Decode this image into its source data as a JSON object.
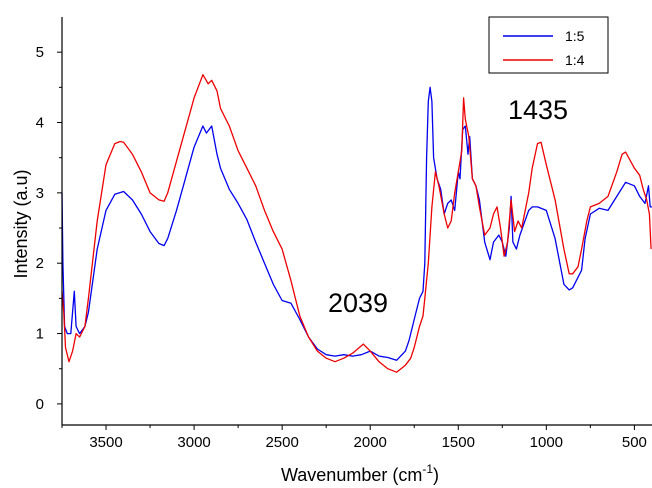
{
  "chart_data": {
    "type": "line",
    "title": "",
    "xlabel": "Wavenumber (cm",
    "xlabel_sup": "-1",
    "xlabel_close": ")",
    "ylabel": "Intensity (a.u)",
    "xlim": [
      3750,
      400
    ],
    "ylim": [
      -0.3,
      5.5
    ],
    "x_reversed": true,
    "grid": false,
    "legend_position": "top-right",
    "xticks": [
      3500,
      3000,
      2500,
      2000,
      1500,
      1000,
      500
    ],
    "yticks": [
      0,
      1,
      2,
      3,
      4,
      5
    ],
    "annotations": [
      {
        "text": "2039",
        "x": 2039,
        "y": 1.2
      },
      {
        "text": "1435",
        "x": 1435,
        "y": 3.85
      }
    ],
    "series": [
      {
        "name": "1:5",
        "color": "#0000ee",
        "points": [
          [
            3750,
            3.0
          ],
          [
            3745,
            2.0
          ],
          [
            3735,
            1.1
          ],
          [
            3720,
            1.0
          ],
          [
            3700,
            1.0
          ],
          [
            3680,
            1.6
          ],
          [
            3670,
            1.1
          ],
          [
            3650,
            1.0
          ],
          [
            3620,
            1.1
          ],
          [
            3600,
            1.3
          ],
          [
            3550,
            2.2
          ],
          [
            3500,
            2.75
          ],
          [
            3450,
            2.98
          ],
          [
            3400,
            3.02
          ],
          [
            3350,
            2.9
          ],
          [
            3300,
            2.7
          ],
          [
            3250,
            2.45
          ],
          [
            3200,
            2.28
          ],
          [
            3170,
            2.25
          ],
          [
            3150,
            2.35
          ],
          [
            3100,
            2.75
          ],
          [
            3050,
            3.2
          ],
          [
            3000,
            3.65
          ],
          [
            2950,
            3.95
          ],
          [
            2930,
            3.85
          ],
          [
            2900,
            3.95
          ],
          [
            2870,
            3.55
          ],
          [
            2850,
            3.35
          ],
          [
            2800,
            3.05
          ],
          [
            2750,
            2.85
          ],
          [
            2700,
            2.62
          ],
          [
            2650,
            2.3
          ],
          [
            2600,
            2.0
          ],
          [
            2550,
            1.7
          ],
          [
            2500,
            1.47
          ],
          [
            2450,
            1.43
          ],
          [
            2400,
            1.2
          ],
          [
            2350,
            0.95
          ],
          [
            2300,
            0.78
          ],
          [
            2250,
            0.7
          ],
          [
            2200,
            0.68
          ],
          [
            2150,
            0.7
          ],
          [
            2100,
            0.68
          ],
          [
            2050,
            0.7
          ],
          [
            2000,
            0.75
          ],
          [
            1950,
            0.68
          ],
          [
            1900,
            0.66
          ],
          [
            1850,
            0.62
          ],
          [
            1800,
            0.75
          ],
          [
            1780,
            0.9
          ],
          [
            1750,
            1.2
          ],
          [
            1720,
            1.5
          ],
          [
            1700,
            1.6
          ],
          [
            1690,
            2.0
          ],
          [
            1680,
            3.5
          ],
          [
            1670,
            4.3
          ],
          [
            1660,
            4.5
          ],
          [
            1650,
            4.3
          ],
          [
            1640,
            3.5
          ],
          [
            1620,
            3.2
          ],
          [
            1600,
            3.05
          ],
          [
            1580,
            2.7
          ],
          [
            1560,
            2.85
          ],
          [
            1540,
            2.9
          ],
          [
            1520,
            2.75
          ],
          [
            1500,
            3.3
          ],
          [
            1490,
            3.2
          ],
          [
            1475,
            3.9
          ],
          [
            1460,
            3.95
          ],
          [
            1445,
            3.55
          ],
          [
            1435,
            3.8
          ],
          [
            1420,
            3.2
          ],
          [
            1400,
            3.1
          ],
          [
            1380,
            2.9
          ],
          [
            1350,
            2.3
          ],
          [
            1320,
            2.05
          ],
          [
            1300,
            2.3
          ],
          [
            1270,
            2.4
          ],
          [
            1250,
            2.3
          ],
          [
            1230,
            2.1
          ],
          [
            1210,
            2.5
          ],
          [
            1200,
            2.95
          ],
          [
            1190,
            2.3
          ],
          [
            1170,
            2.2
          ],
          [
            1150,
            2.4
          ],
          [
            1100,
            2.75
          ],
          [
            1080,
            2.8
          ],
          [
            1050,
            2.8
          ],
          [
            1000,
            2.75
          ],
          [
            950,
            2.35
          ],
          [
            900,
            1.7
          ],
          [
            870,
            1.62
          ],
          [
            850,
            1.65
          ],
          [
            800,
            1.9
          ],
          [
            780,
            2.35
          ],
          [
            750,
            2.7
          ],
          [
            700,
            2.78
          ],
          [
            650,
            2.75
          ],
          [
            600,
            2.95
          ],
          [
            550,
            3.15
          ],
          [
            500,
            3.1
          ],
          [
            470,
            2.95
          ],
          [
            440,
            2.85
          ],
          [
            420,
            3.1
          ],
          [
            410,
            2.8
          ],
          [
            400,
            2.8
          ]
        ]
      },
      {
        "name": "1:4",
        "color": "#ee0000",
        "points": [
          [
            3750,
            1.6
          ],
          [
            3740,
            1.3
          ],
          [
            3730,
            0.8
          ],
          [
            3710,
            0.6
          ],
          [
            3690,
            0.75
          ],
          [
            3670,
            1.0
          ],
          [
            3650,
            0.95
          ],
          [
            3620,
            1.1
          ],
          [
            3600,
            1.5
          ],
          [
            3550,
            2.6
          ],
          [
            3500,
            3.4
          ],
          [
            3450,
            3.7
          ],
          [
            3420,
            3.73
          ],
          [
            3400,
            3.72
          ],
          [
            3350,
            3.55
          ],
          [
            3300,
            3.3
          ],
          [
            3250,
            3.0
          ],
          [
            3200,
            2.9
          ],
          [
            3170,
            2.88
          ],
          [
            3150,
            3.0
          ],
          [
            3100,
            3.45
          ],
          [
            3050,
            3.9
          ],
          [
            3000,
            4.35
          ],
          [
            2950,
            4.68
          ],
          [
            2920,
            4.55
          ],
          [
            2900,
            4.6
          ],
          [
            2870,
            4.45
          ],
          [
            2850,
            4.2
          ],
          [
            2800,
            3.95
          ],
          [
            2750,
            3.6
          ],
          [
            2700,
            3.35
          ],
          [
            2650,
            3.1
          ],
          [
            2600,
            2.75
          ],
          [
            2550,
            2.45
          ],
          [
            2500,
            2.2
          ],
          [
            2450,
            1.75
          ],
          [
            2400,
            1.25
          ],
          [
            2350,
            0.95
          ],
          [
            2300,
            0.75
          ],
          [
            2250,
            0.65
          ],
          [
            2200,
            0.6
          ],
          [
            2150,
            0.65
          ],
          [
            2100,
            0.72
          ],
          [
            2039,
            0.85
          ],
          [
            2000,
            0.75
          ],
          [
            1950,
            0.6
          ],
          [
            1900,
            0.5
          ],
          [
            1850,
            0.45
          ],
          [
            1800,
            0.55
          ],
          [
            1770,
            0.65
          ],
          [
            1750,
            0.8
          ],
          [
            1720,
            1.1
          ],
          [
            1700,
            1.25
          ],
          [
            1690,
            1.5
          ],
          [
            1670,
            2.0
          ],
          [
            1650,
            2.8
          ],
          [
            1630,
            3.3
          ],
          [
            1610,
            3.1
          ],
          [
            1580,
            2.7
          ],
          [
            1560,
            2.5
          ],
          [
            1540,
            2.6
          ],
          [
            1520,
            3.0
          ],
          [
            1500,
            3.3
          ],
          [
            1480,
            3.6
          ],
          [
            1470,
            4.35
          ],
          [
            1460,
            4.05
          ],
          [
            1440,
            3.8
          ],
          [
            1420,
            3.2
          ],
          [
            1400,
            3.1
          ],
          [
            1380,
            2.8
          ],
          [
            1350,
            2.4
          ],
          [
            1320,
            2.5
          ],
          [
            1300,
            2.7
          ],
          [
            1280,
            2.8
          ],
          [
            1260,
            2.5
          ],
          [
            1240,
            2.1
          ],
          [
            1220,
            2.3
          ],
          [
            1200,
            2.9
          ],
          [
            1180,
            2.45
          ],
          [
            1160,
            2.6
          ],
          [
            1140,
            2.5
          ],
          [
            1100,
            3.0
          ],
          [
            1080,
            3.35
          ],
          [
            1050,
            3.7
          ],
          [
            1030,
            3.72
          ],
          [
            1000,
            3.4
          ],
          [
            950,
            2.9
          ],
          [
            900,
            2.2
          ],
          [
            870,
            1.85
          ],
          [
            850,
            1.85
          ],
          [
            820,
            1.95
          ],
          [
            800,
            2.2
          ],
          [
            770,
            2.6
          ],
          [
            750,
            2.8
          ],
          [
            700,
            2.85
          ],
          [
            650,
            2.95
          ],
          [
            600,
            3.3
          ],
          [
            570,
            3.55
          ],
          [
            550,
            3.58
          ],
          [
            500,
            3.35
          ],
          [
            470,
            3.25
          ],
          [
            450,
            3.05
          ],
          [
            430,
            2.9
          ],
          [
            415,
            2.7
          ],
          [
            405,
            2.2
          ]
        ]
      }
    ]
  }
}
